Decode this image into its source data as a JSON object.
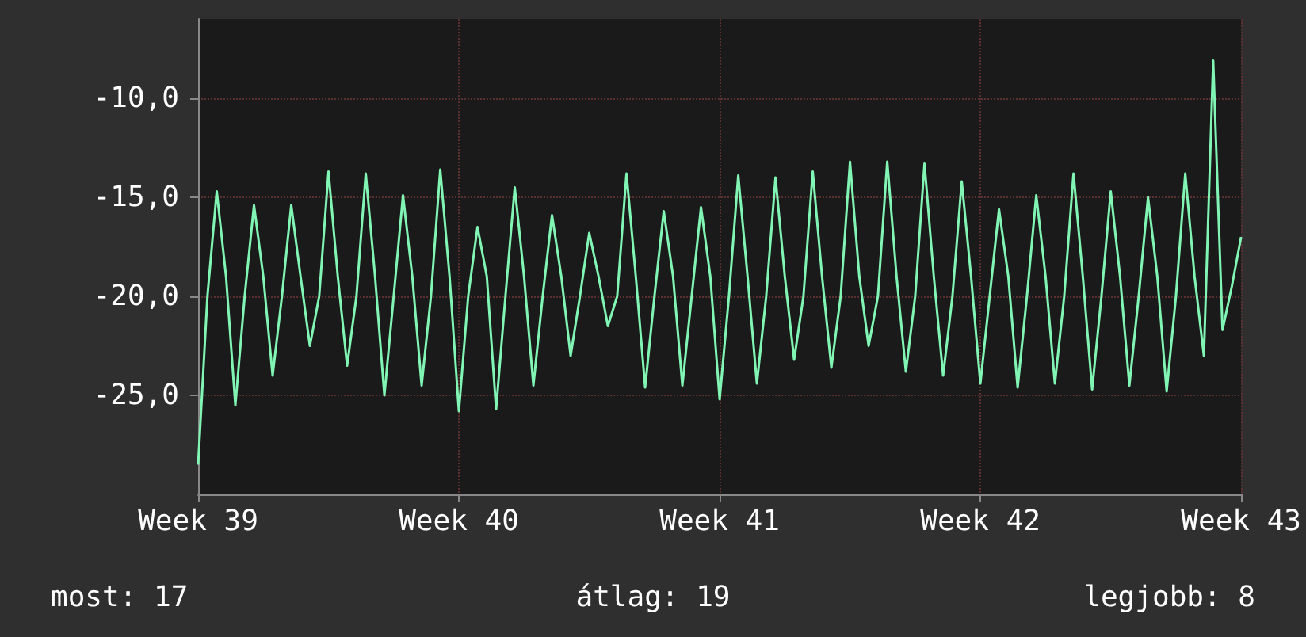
{
  "chart_data": {
    "type": "line",
    "categories": [
      "Week 39",
      null,
      null,
      null,
      null,
      null,
      null,
      null,
      null,
      null,
      null,
      null,
      null,
      null,
      null,
      null,
      null,
      null,
      null,
      null,
      null,
      null,
      null,
      null,
      null,
      null,
      null,
      null,
      "Week 40",
      null,
      null,
      null,
      null,
      null,
      null,
      null,
      null,
      null,
      null,
      null,
      null,
      null,
      null,
      null,
      null,
      null,
      null,
      null,
      null,
      null,
      null,
      null,
      null,
      null,
      null,
      null,
      "Week 41",
      null,
      null,
      null,
      null,
      null,
      null,
      null,
      null,
      null,
      null,
      null,
      null,
      null,
      null,
      null,
      null,
      null,
      null,
      null,
      null,
      null,
      null,
      null,
      null,
      null,
      null,
      null,
      "Week 42",
      null,
      null,
      null,
      null,
      null,
      null,
      null,
      null,
      null,
      null,
      null,
      null,
      null,
      null,
      null,
      null,
      null,
      null,
      null,
      null,
      null,
      null,
      null,
      null,
      null,
      null,
      null,
      "Week 43"
    ],
    "ylim": [
      -30,
      -6
    ],
    "yticks": [
      {
        "value": -25,
        "label": "-25,0"
      },
      {
        "value": -20,
        "label": "-20,0"
      },
      {
        "value": -15,
        "label": "-15,0"
      },
      {
        "value": -10,
        "label": "-10,0"
      }
    ],
    "grid": true,
    "marker": "none",
    "line_style": "solid",
    "annotations": [
      "most: 17",
      "átlag: 19",
      "legjobb: 8"
    ],
    "series": [
      {
        "color": "#80f5b4",
        "values": [
          -28.5,
          -20,
          -14.7,
          -19,
          -25.5,
          -20,
          -15.4,
          -19,
          -24,
          -20,
          -15.4,
          -19,
          -22.5,
          -20,
          -13.7,
          -19,
          -23.5,
          -20,
          -13.8,
          -19,
          -25,
          -20,
          -14.9,
          -19,
          -24.5,
          -20,
          -13.6,
          -19,
          -25.8,
          -20,
          -16.5,
          -19,
          -25.7,
          -20,
          -14.5,
          -19,
          -24.5,
          -20,
          -15.9,
          -19,
          -23,
          -20,
          -16.8,
          -19,
          -21.5,
          -20,
          -13.8,
          -19,
          -24.6,
          -20,
          -15.7,
          -19,
          -24.5,
          -20,
          -15.5,
          -19,
          -25.2,
          -20,
          -13.9,
          -19,
          -24.4,
          -20,
          -14,
          -19,
          -23.2,
          -20,
          -13.7,
          -19,
          -23.6,
          -20,
          -13.2,
          -19,
          -22.5,
          -20,
          -13.2,
          -19,
          -23.8,
          -20,
          -13.3,
          -19,
          -24,
          -20,
          -14.2,
          -19,
          -24.4,
          -20,
          -15.6,
          -19,
          -24.6,
          -20,
          -14.9,
          -19,
          -24.4,
          -20,
          -13.8,
          -19,
          -24.7,
          -20,
          -14.7,
          -19,
          -24.5,
          -20,
          -15,
          -19,
          -24.8,
          -20,
          -13.8,
          -19,
          -23,
          -8.1,
          -21.7,
          -19.5,
          -17
        ]
      }
    ]
  }
}
